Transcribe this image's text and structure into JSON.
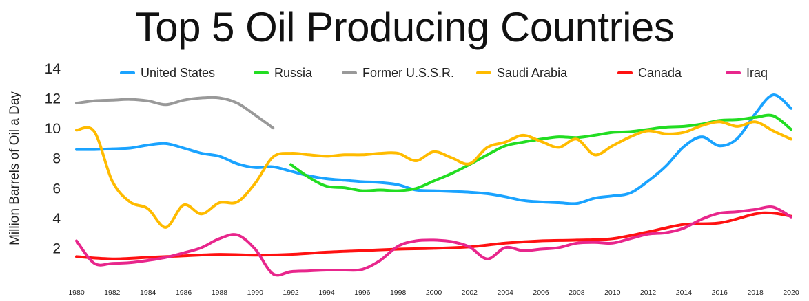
{
  "chart_data": {
    "type": "line",
    "title": "Top 5 Oil Producing Countries",
    "ylabel": "Million Barrels of Oil a Day",
    "xlabel": "",
    "xlim": [
      1980,
      2020
    ],
    "ylim": [
      0,
      14
    ],
    "xticks": [
      "1980",
      "1982",
      "1984",
      "1986",
      "1988",
      "1990",
      "1992",
      "1994",
      "1996",
      "1998",
      "2000",
      "2002",
      "2004",
      "2006",
      "2008",
      "2010",
      "2012",
      "2014",
      "2016",
      "2018",
      "2020"
    ],
    "yticks": [
      "2",
      "4",
      "6",
      "8",
      "10",
      "12",
      "14"
    ],
    "grid": false,
    "legend_position": "top",
    "series": [
      {
        "name": "United States",
        "color": "#1aa3ff",
        "x": [
          1980,
          1981,
          1982,
          1983,
          1984,
          1985,
          1986,
          1987,
          1988,
          1989,
          1990,
          1991,
          1992,
          1993,
          1994,
          1995,
          1996,
          1997,
          1998,
          1999,
          2000,
          2001,
          2002,
          2003,
          2004,
          2005,
          2006,
          2007,
          2008,
          2009,
          2010,
          2011,
          2012,
          2013,
          2014,
          2015,
          2016,
          2017,
          2018,
          2019,
          2020
        ],
        "y": [
          8.6,
          8.6,
          8.65,
          8.7,
          8.9,
          9.0,
          8.7,
          8.35,
          8.15,
          7.65,
          7.4,
          7.45,
          7.15,
          6.85,
          6.65,
          6.55,
          6.45,
          6.4,
          6.25,
          5.9,
          5.85,
          5.8,
          5.75,
          5.65,
          5.45,
          5.2,
          5.1,
          5.05,
          5.0,
          5.35,
          5.5,
          5.7,
          6.5,
          7.5,
          8.8,
          9.45,
          8.85,
          9.35,
          11.0,
          12.25,
          11.35
        ]
      },
      {
        "name": "Russia",
        "color": "#22dd22",
        "x": [
          1992,
          1993,
          1994,
          1995,
          1996,
          1997,
          1998,
          1999,
          2000,
          2001,
          2002,
          2003,
          2004,
          2005,
          2006,
          2007,
          2008,
          2009,
          2010,
          2011,
          2012,
          2013,
          2014,
          2015,
          2016,
          2017,
          2018,
          2019,
          2020
        ],
        "y": [
          7.6,
          6.75,
          6.15,
          6.05,
          5.85,
          5.9,
          5.85,
          6.0,
          6.5,
          7.0,
          7.6,
          8.25,
          8.85,
          9.1,
          9.3,
          9.45,
          9.4,
          9.55,
          9.75,
          9.8,
          9.95,
          10.1,
          10.15,
          10.3,
          10.55,
          10.6,
          10.75,
          10.85,
          9.95
        ]
      },
      {
        "name": "Former U.S.S.R.",
        "color": "#999999",
        "x": [
          1980,
          1981,
          1982,
          1983,
          1984,
          1985,
          1986,
          1987,
          1988,
          1989,
          1990,
          1991
        ],
        "y": [
          11.7,
          11.85,
          11.9,
          11.95,
          11.85,
          11.6,
          11.9,
          12.05,
          12.05,
          11.7,
          10.9,
          10.05
        ]
      },
      {
        "name": "Saudi Arabia",
        "color": "#ffbb00",
        "x": [
          1980,
          1981,
          1982,
          1983,
          1984,
          1985,
          1986,
          1987,
          1988,
          1989,
          1990,
          1991,
          1992,
          1993,
          1994,
          1995,
          1996,
          1997,
          1998,
          1999,
          2000,
          2001,
          2002,
          2003,
          2004,
          2005,
          2006,
          2007,
          2008,
          2009,
          2010,
          2011,
          2012,
          2013,
          2014,
          2015,
          2016,
          2017,
          2018,
          2019,
          2020
        ],
        "y": [
          9.9,
          9.8,
          6.5,
          5.1,
          4.65,
          3.4,
          4.9,
          4.3,
          5.05,
          5.1,
          6.35,
          8.1,
          8.35,
          8.25,
          8.15,
          8.25,
          8.25,
          8.35,
          8.35,
          7.85,
          8.45,
          8.05,
          7.65,
          8.75,
          9.1,
          9.55,
          9.15,
          8.75,
          9.3,
          8.25,
          8.85,
          9.45,
          9.85,
          9.65,
          9.75,
          10.2,
          10.45,
          10.15,
          10.45,
          9.85,
          9.3
        ]
      },
      {
        "name": "Canada",
        "color": "#ff1111",
        "x": [
          1980,
          1982,
          1984,
          1986,
          1988,
          1990,
          1992,
          1994,
          1996,
          1998,
          2000,
          2002,
          2004,
          2006,
          2008,
          2010,
          2012,
          2014,
          2016,
          2018,
          2019,
          2020
        ],
        "y": [
          1.45,
          1.3,
          1.4,
          1.5,
          1.6,
          1.55,
          1.6,
          1.75,
          1.85,
          1.95,
          2.0,
          2.1,
          2.35,
          2.5,
          2.55,
          2.65,
          3.1,
          3.6,
          3.7,
          4.3,
          4.35,
          4.15
        ]
      },
      {
        "name": "Iraq",
        "color": "#e8268c",
        "x": [
          1980,
          1981,
          1982,
          1983,
          1984,
          1985,
          1986,
          1987,
          1988,
          1989,
          1990,
          1991,
          1992,
          1993,
          1994,
          1995,
          1996,
          1997,
          1998,
          1999,
          2000,
          2001,
          2002,
          2003,
          2004,
          2005,
          2006,
          2007,
          2008,
          2009,
          2010,
          2011,
          2012,
          2013,
          2014,
          2015,
          2016,
          2017,
          2018,
          2019,
          2020
        ],
        "y": [
          2.5,
          1.0,
          1.0,
          1.05,
          1.2,
          1.4,
          1.7,
          2.05,
          2.65,
          2.9,
          1.95,
          0.3,
          0.45,
          0.5,
          0.55,
          0.55,
          0.6,
          1.2,
          2.15,
          2.5,
          2.55,
          2.45,
          2.1,
          1.3,
          2.05,
          1.85,
          1.95,
          2.05,
          2.35,
          2.4,
          2.35,
          2.65,
          2.95,
          3.05,
          3.35,
          3.95,
          4.35,
          4.45,
          4.6,
          4.75,
          4.1
        ]
      }
    ]
  }
}
